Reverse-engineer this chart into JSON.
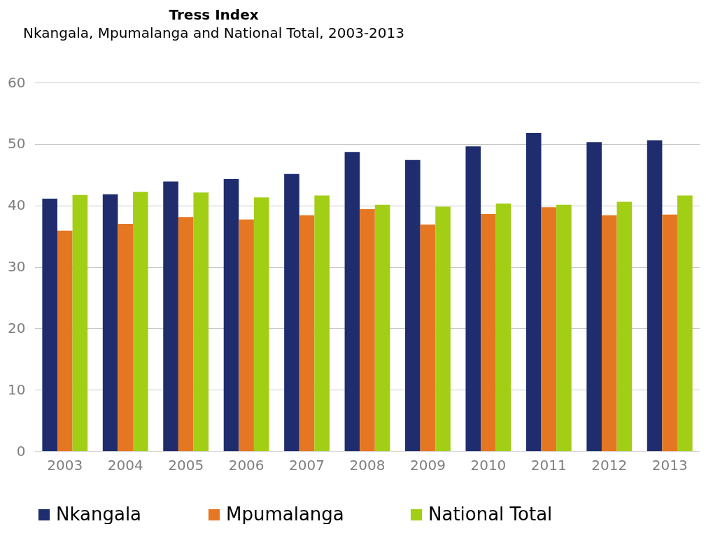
{
  "chart_data": {
    "type": "bar",
    "title": "Tress Index",
    "subtitle": "Nkangala, Mpumalanga and National Total, 2003-2013",
    "categories": [
      "2003",
      "2004",
      "2005",
      "2006",
      "2007",
      "2008",
      "2009",
      "2010",
      "2011",
      "2012",
      "2013"
    ],
    "series": [
      {
        "name": "Nkangala",
        "color": "#1f2d6e",
        "values": [
          41.1,
          41.8,
          43.9,
          44.3,
          45.1,
          48.7,
          47.4,
          49.6,
          51.8,
          50.3,
          50.6
        ]
      },
      {
        "name": "Mpumalanga",
        "color": "#e67722",
        "values": [
          35.9,
          37.0,
          38.1,
          37.7,
          38.4,
          39.4,
          36.9,
          38.6,
          39.7,
          38.4,
          38.5
        ]
      },
      {
        "name": "National Total",
        "color": "#a2ce16",
        "values": [
          41.7,
          42.2,
          42.1,
          41.3,
          41.6,
          40.1,
          39.8,
          40.3,
          40.1,
          40.6,
          41.6
        ]
      }
    ],
    "ylim": [
      0,
      60
    ],
    "yticks": [
      0,
      10,
      20,
      30,
      40,
      50,
      60
    ],
    "grid": "y",
    "legend": "bottom"
  }
}
